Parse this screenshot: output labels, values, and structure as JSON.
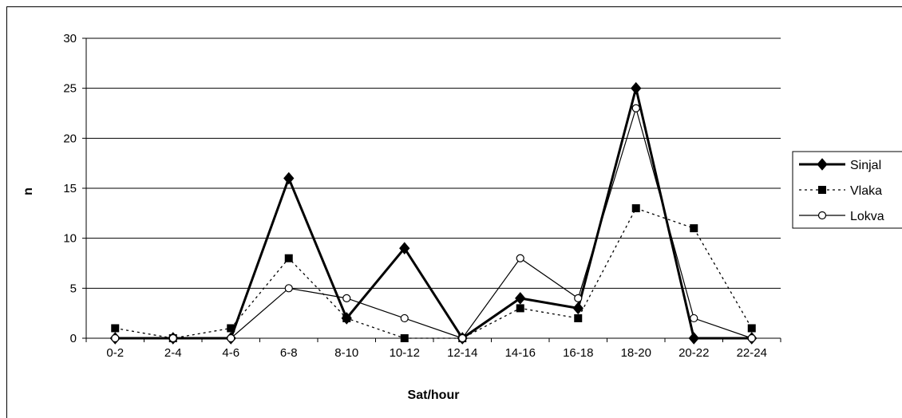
{
  "chart_data": {
    "type": "line",
    "xlabel": "Sat/hour",
    "ylabel": "n",
    "ylim": [
      0,
      30
    ],
    "yticks": [
      0,
      5,
      10,
      15,
      20,
      25,
      30
    ],
    "grid": "horizontal",
    "legend_position": "right",
    "categories": [
      "0-2",
      "2-4",
      "4-6",
      "6-8",
      "8-10",
      "10-12",
      "12-14",
      "14-16",
      "16-18",
      "18-20",
      "20-22",
      "22-24"
    ],
    "series": [
      {
        "name": "Sinjal",
        "marker": "diamond",
        "line": "solid-thick",
        "color": "#000000",
        "values": [
          0,
          0,
          0,
          16,
          2,
          9,
          0,
          4,
          3,
          25,
          0,
          0
        ]
      },
      {
        "name": "Vlaka",
        "marker": "square",
        "line": "dotted",
        "color": "#000000",
        "values": [
          1,
          0,
          1,
          8,
          2,
          0,
          0,
          3,
          2,
          13,
          11,
          1
        ]
      },
      {
        "name": "Lokva",
        "marker": "open-circle",
        "line": "solid-thin",
        "color": "#000000",
        "values": [
          0,
          0,
          0,
          5,
          4,
          2,
          0,
          8,
          4,
          23,
          2,
          0
        ]
      }
    ]
  }
}
